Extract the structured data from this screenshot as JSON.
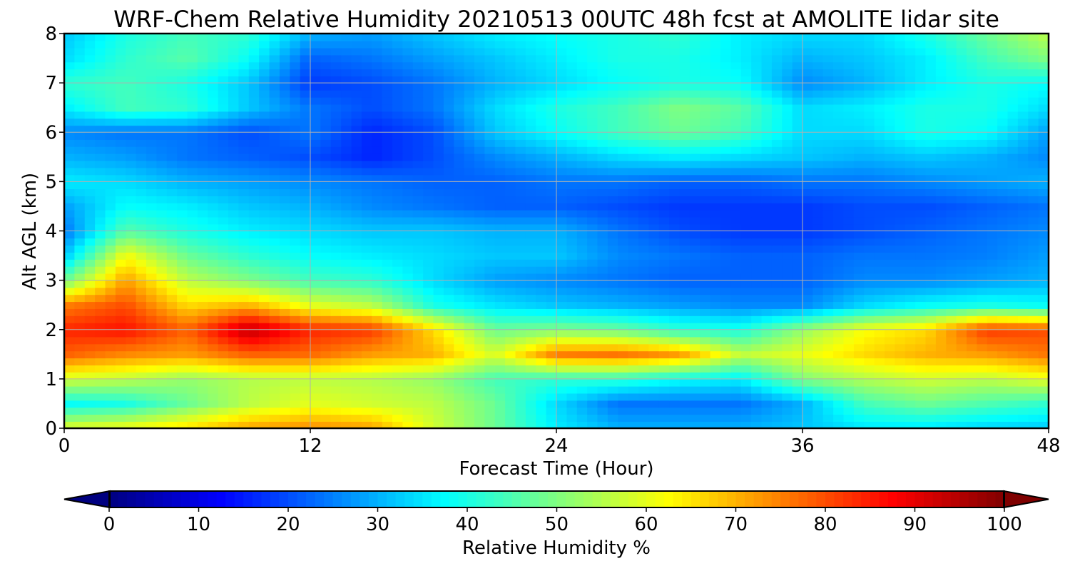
{
  "chart_data": {
    "type": "heatmap",
    "title": "WRF-Chem Relative Humidity 20210513 00UTC 48h fcst at AMOLITE lidar site",
    "xlabel": "Forecast Time (Hour)",
    "ylabel": "Alt AGL (km)",
    "xlim": [
      0,
      48
    ],
    "ylim": [
      0,
      8
    ],
    "x_ticks": [
      "0",
      "12",
      "24",
      "36",
      "48"
    ],
    "y_ticks": [
      "0",
      "1",
      "2",
      "3",
      "4",
      "5",
      "6",
      "7",
      "8"
    ],
    "grid": true,
    "colormap": "jet",
    "colorbar": {
      "label": "Relative Humidity %",
      "range": [
        0,
        100
      ],
      "ticks": [
        "0",
        "10",
        "20",
        "30",
        "40",
        "50",
        "60",
        "70",
        "80",
        "90",
        "100"
      ],
      "extend": "both",
      "orientation": "horizontal"
    },
    "x": [
      0,
      3,
      6,
      9,
      12,
      15,
      18,
      21,
      24,
      27,
      30,
      33,
      36,
      39,
      42,
      45,
      48
    ],
    "y": [
      0,
      0.5,
      1,
      1.5,
      2,
      2.5,
      3,
      3.5,
      4,
      4.5,
      5,
      5.5,
      6,
      6.5,
      7,
      7.5,
      8
    ],
    "values": [
      [
        60,
        62,
        66,
        72,
        74,
        72,
        58,
        48,
        36,
        30,
        30,
        30,
        32,
        35,
        35,
        33,
        32
      ],
      [
        38,
        40,
        48,
        56,
        60,
        58,
        56,
        48,
        34,
        24,
        24,
        24,
        30,
        44,
        48,
        45,
        42
      ],
      [
        58,
        56,
        52,
        55,
        56,
        55,
        52,
        44,
        42,
        42,
        38,
        36,
        50,
        55,
        58,
        56,
        60
      ],
      [
        78,
        74,
        72,
        78,
        77,
        72,
        70,
        58,
        75,
        76,
        72,
        56,
        60,
        66,
        70,
        72,
        76
      ],
      [
        84,
        86,
        78,
        94,
        84,
        82,
        66,
        48,
        50,
        48,
        42,
        40,
        52,
        62,
        66,
        82,
        80
      ],
      [
        75,
        80,
        66,
        70,
        60,
        56,
        40,
        35,
        32,
        30,
        28,
        26,
        26,
        34,
        38,
        40,
        38
      ],
      [
        48,
        72,
        56,
        50,
        44,
        42,
        34,
        28,
        26,
        24,
        22,
        22,
        22,
        26,
        26,
        28,
        30
      ],
      [
        32,
        62,
        48,
        42,
        38,
        36,
        34,
        32,
        32,
        26,
        24,
        22,
        22,
        24,
        24,
        25,
        28
      ],
      [
        24,
        46,
        40,
        36,
        34,
        32,
        32,
        30,
        30,
        24,
        20,
        18,
        18,
        20,
        22,
        24,
        26
      ],
      [
        28,
        38,
        36,
        32,
        30,
        26,
        24,
        22,
        22,
        20,
        18,
        18,
        18,
        20,
        20,
        22,
        24
      ],
      [
        36,
        34,
        30,
        28,
        26,
        24,
        22,
        22,
        24,
        24,
        22,
        22,
        24,
        24,
        26,
        28,
        30
      ],
      [
        30,
        28,
        24,
        22,
        20,
        16,
        20,
        26,
        30,
        34,
        36,
        34,
        32,
        30,
        32,
        30,
        26
      ],
      [
        26,
        24,
        24,
        20,
        24,
        16,
        20,
        32,
        38,
        44,
        48,
        44,
        34,
        34,
        40,
        38,
        28
      ],
      [
        36,
        44,
        42,
        32,
        24,
        20,
        24,
        34,
        40,
        44,
        50,
        46,
        34,
        36,
        40,
        40,
        34
      ],
      [
        42,
        44,
        40,
        32,
        18,
        20,
        24,
        30,
        34,
        38,
        40,
        38,
        26,
        30,
        36,
        40,
        38
      ],
      [
        34,
        42,
        46,
        38,
        22,
        24,
        28,
        32,
        36,
        40,
        40,
        36,
        30,
        32,
        36,
        44,
        50
      ],
      [
        32,
        40,
        44,
        42,
        30,
        28,
        32,
        36,
        38,
        40,
        42,
        36,
        34,
        34,
        40,
        48,
        56
      ]
    ]
  }
}
